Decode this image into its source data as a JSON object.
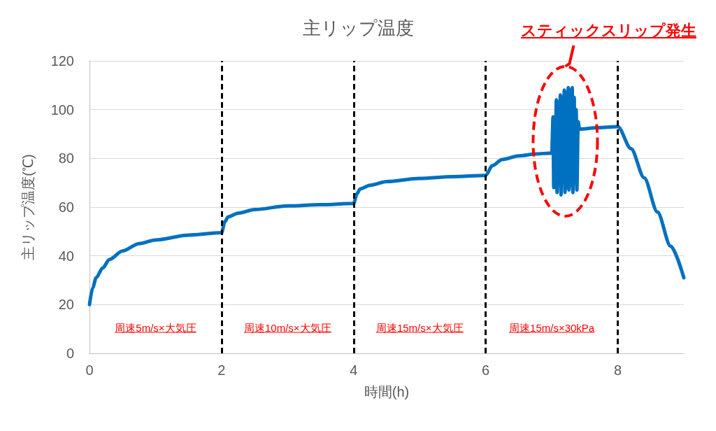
{
  "chart_data": {
    "type": "line",
    "title": "主リップ温度",
    "xlabel": "時間(h)",
    "ylabel": "主リップ温度(℃)",
    "xlim": [
      0,
      9
    ],
    "xticks": [
      0,
      2,
      4,
      6,
      8
    ],
    "ylim": [
      0,
      120
    ],
    "yticks": [
      0,
      20,
      40,
      60,
      80,
      100,
      120
    ],
    "grid": "y",
    "marker": "none",
    "line_style": "solid",
    "series": [
      {
        "color": "#0070c0",
        "x": [
          0,
          0.05,
          0.1,
          0.2,
          0.3,
          0.5,
          0.75,
          1,
          1.5,
          2,
          2.05,
          2.1,
          2.25,
          2.5,
          3,
          3.5,
          4,
          4.05,
          4.1,
          4.25,
          4.5,
          5,
          5.5,
          6,
          6.1,
          6.25,
          6.5,
          6.75,
          7,
          7.02,
          7.03,
          7.04,
          7.05,
          7.07,
          7.08,
          7.1,
          7.11,
          7.13,
          7.14,
          7.16,
          7.17,
          7.19,
          7.2,
          7.22,
          7.23,
          7.25,
          7.26,
          7.28,
          7.29,
          7.31,
          7.32,
          7.34,
          7.35,
          7.37,
          7.38,
          7.4,
          7.42,
          7.7,
          8,
          8.2,
          8.4,
          8.6,
          8.8,
          9
        ],
        "values": [
          20,
          27,
          31,
          35,
          38.5,
          42,
          45,
          46.5,
          48.5,
          49.5,
          54,
          56,
          57.5,
          59,
          60.5,
          61,
          61.5,
          65.5,
          67.5,
          69,
          70.5,
          71.8,
          72.5,
          73,
          77,
          79.5,
          81,
          81.8,
          82.2,
          97,
          68,
          96,
          70,
          104,
          66,
          103,
          69,
          106,
          65,
          105,
          70,
          108,
          66,
          107,
          68,
          109,
          67,
          108,
          69,
          109,
          66,
          105,
          70,
          100,
          67,
          95,
          92,
          92.6,
          93,
          84,
          72,
          58,
          44,
          31
        ]
      }
    ],
    "ref_lines": [
      {
        "axis": "x",
        "value": 2,
        "color": "#000000",
        "line_style": "dashed"
      },
      {
        "axis": "x",
        "value": 4,
        "color": "#000000",
        "line_style": "dashed"
      },
      {
        "axis": "x",
        "value": 6,
        "color": "#000000",
        "line_style": "dashed"
      },
      {
        "axis": "x",
        "value": 8,
        "color": "#000000",
        "line_style": "dashed"
      }
    ],
    "annotations": [
      "周速5m/s×大気圧",
      "周速10m/s×大気圧",
      "周速15m/s×大気圧",
      "周速15m/s×30kPa",
      "スティックスリップ発生"
    ]
  }
}
